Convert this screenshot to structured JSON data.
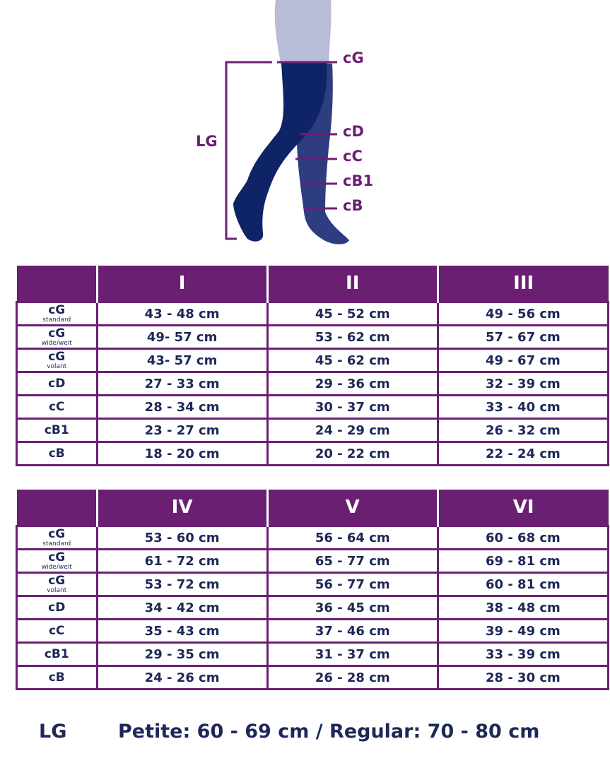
{
  "colors": {
    "accent": "#6b1f73",
    "text": "#1d2858",
    "leg_front": "#0f2466",
    "leg_back": "#2e3c80",
    "body": "#b9bcd6"
  },
  "diagram": {
    "labels": {
      "cG": "cG",
      "cD": "cD",
      "cC": "cC",
      "cB1": "cB1",
      "cB": "cB",
      "LG": "LG"
    }
  },
  "row_labels": [
    {
      "main": "cG",
      "sub": "standard"
    },
    {
      "main": "cG",
      "sub": "wide/weit"
    },
    {
      "main": "cG",
      "sub": "volant"
    },
    {
      "main": "cD",
      "sub": ""
    },
    {
      "main": "cC",
      "sub": ""
    },
    {
      "main": "cB1",
      "sub": ""
    },
    {
      "main": "cB",
      "sub": ""
    }
  ],
  "table1": {
    "headers": [
      "I",
      "II",
      "III"
    ],
    "rows": [
      [
        "43 - 48 cm",
        "45 - 52 cm",
        "49 - 56 cm"
      ],
      [
        "49- 57 cm",
        "53 - 62 cm",
        "57 - 67 cm"
      ],
      [
        "43- 57 cm",
        "45 - 62 cm",
        "49 - 67 cm"
      ],
      [
        "27 - 33 cm",
        "29 - 36 cm",
        "32 - 39 cm"
      ],
      [
        "28 - 34 cm",
        "30 - 37 cm",
        "33 - 40 cm"
      ],
      [
        "23 - 27 cm",
        "24 - 29 cm",
        "26 - 32 cm"
      ],
      [
        "18 - 20 cm",
        "20 - 22 cm",
        "22 - 24 cm"
      ]
    ]
  },
  "table2": {
    "headers": [
      "IV",
      "V",
      "VI"
    ],
    "rows": [
      [
        "53 - 60 cm",
        "56 - 64 cm",
        "60 - 68 cm"
      ],
      [
        "61 - 72 cm",
        "65 - 77 cm",
        "69 - 81 cm"
      ],
      [
        "53 - 72 cm",
        "56 - 77 cm",
        "60 - 81 cm"
      ],
      [
        "34 - 42 cm",
        "36 - 45 cm",
        "38 - 48 cm"
      ],
      [
        "35 - 43 cm",
        "37 - 46 cm",
        "39 - 49 cm"
      ],
      [
        "29 - 35 cm",
        "31 - 37 cm",
        "33 - 39 cm"
      ],
      [
        "24 - 26 cm",
        "26 - 28 cm",
        "28 - 30 cm"
      ]
    ]
  },
  "footer": {
    "label": "LG",
    "text": "Petite: 60 - 69 cm / Regular: 70 - 80 cm"
  }
}
